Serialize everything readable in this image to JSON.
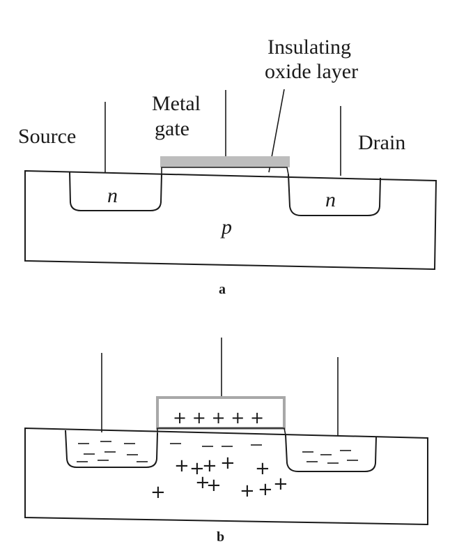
{
  "diagram_a": {
    "labels": {
      "insulating_line1": "Insulating",
      "insulating_line2": "oxide layer",
      "metal_line1": "Metal",
      "metal_line2": "gate",
      "source": "Source",
      "drain": "Drain",
      "n_left": "n",
      "n_right": "n",
      "p_region": "p"
    },
    "caption": "a"
  },
  "diagram_b": {
    "gate_charges": "+ + + + +",
    "caption": "b"
  },
  "colors": {
    "line": "#1a1a1a",
    "gate_fill": "#bdbdbd",
    "gate_border": "#a8a8a8",
    "background": "#ffffff"
  }
}
